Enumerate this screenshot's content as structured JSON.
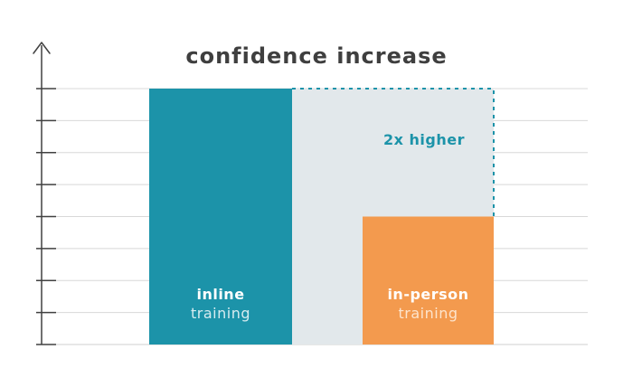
{
  "chart_data": {
    "type": "bar",
    "title": "confidence increase",
    "xlabel": "",
    "ylabel": "",
    "ylim": [
      0,
      8
    ],
    "grid": true,
    "categories": [
      {
        "bold": "inline",
        "light": "training"
      },
      {
        "bold": "in-person",
        "light": "training"
      }
    ],
    "values": [
      8,
      4
    ],
    "annotation": "2x higher",
    "colors": {
      "inline": "#1c93a9",
      "in_person": "#f39a4e",
      "comparison_fill": "#e2e8eb",
      "dashed_outline": "#1c93a9",
      "gridline": "#d8d8d8",
      "axis": "#404040",
      "title": "#3f3f3f",
      "inline_light_label": "#d7ecf0",
      "in_person_light_label": "#fde4cc"
    }
  }
}
